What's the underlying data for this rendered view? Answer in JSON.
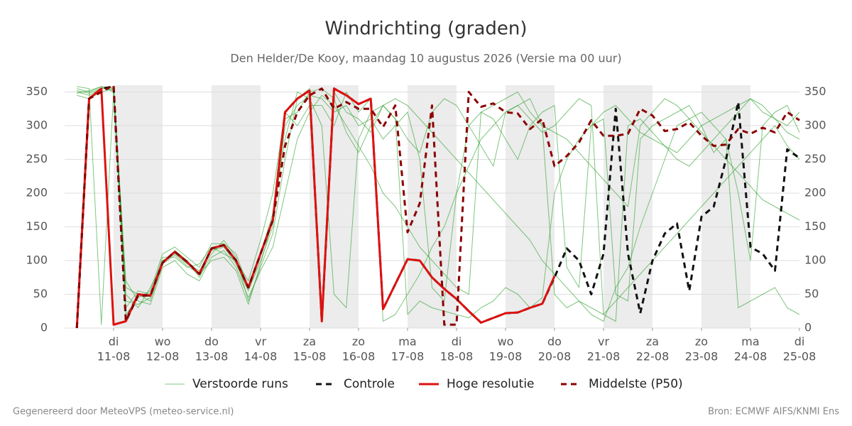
{
  "chart_data": {
    "type": "line",
    "title": "Windrichting (graden)",
    "subtitle": "Den Helder/De Kooy, maandag 10 augustus 2026 (Versie ma 00 uur)",
    "footer_left": "Gegenereerd door MeteoVPS (meteo-service.nl)",
    "footer_right": "Bron: ECMWF AIFS/KNMI Ens",
    "xlim": [
      10,
      25
    ],
    "ylim": [
      0,
      360
    ],
    "yticks": [
      0,
      50,
      100,
      150,
      200,
      250,
      300,
      350
    ],
    "xticks": [
      {
        "value": 11,
        "label": "11-08",
        "weekday": "di"
      },
      {
        "value": 12,
        "label": "12-08",
        "weekday": "wo"
      },
      {
        "value": 13,
        "label": "13-08",
        "weekday": "do"
      },
      {
        "value": 14,
        "label": "14-08",
        "weekday": "vr"
      },
      {
        "value": 15,
        "label": "15-08",
        "weekday": "za"
      },
      {
        "value": 16,
        "label": "16-08",
        "weekday": "zo"
      },
      {
        "value": 17,
        "label": "17-08",
        "weekday": "ma"
      },
      {
        "value": 18,
        "label": "18-08",
        "weekday": "di"
      },
      {
        "value": 19,
        "label": "19-08",
        "weekday": "wo"
      },
      {
        "value": 20,
        "label": "20-08",
        "weekday": "do"
      },
      {
        "value": 21,
        "label": "21-08",
        "weekday": "vr"
      },
      {
        "value": 22,
        "label": "22-08",
        "weekday": "za"
      },
      {
        "value": 23,
        "label": "23-08",
        "weekday": "zo"
      },
      {
        "value": 24,
        "label": "24-08",
        "weekday": "ma"
      },
      {
        "value": 25,
        "label": "25-08",
        "weekday": "di"
      }
    ],
    "shaded_days": [
      11,
      13,
      15,
      17,
      19,
      21,
      23
    ],
    "grid": true,
    "x": [
      10.25,
      10.5,
      10.75,
      11,
      11.25,
      11.5,
      11.75,
      12,
      12.25,
      12.5,
      12.75,
      13,
      13.25,
      13.5,
      13.75,
      14,
      14.25,
      14.5,
      14.75,
      15,
      15.25,
      15.5,
      15.75,
      16,
      16.25,
      16.5,
      16.75,
      17,
      17.25,
      17.5,
      17.75,
      18,
      18.25,
      18.5,
      18.75,
      19,
      19.25,
      19.5,
      19.75,
      20,
      20.25,
      20.5,
      20.75,
      21,
      21.25,
      21.5,
      21.75,
      22,
      22.25,
      22.5,
      22.75,
      23,
      23.25,
      23.5,
      23.75,
      24,
      24.25,
      24.5,
      24.75,
      25
    ],
    "series": [
      {
        "name": "Verstoorde runs",
        "color": "#2ca02c",
        "style": "thin",
        "members": [
          [
            355,
            350,
            358,
            355,
            40,
            35,
            45,
            100,
            110,
            95,
            85,
            115,
            120,
            95,
            55,
            100,
            150,
            300,
            330,
            345,
            340,
            320,
            330,
            300,
            310,
            280,
            300,
            320,
            250,
            60,
            40,
            200,
            300,
            320,
            310,
            280,
            250,
            300,
            320,
            330,
            90,
            60,
            300,
            310,
            50,
            40,
            280,
            300,
            310,
            320,
            330,
            300,
            260,
            280,
            200,
            100,
            300,
            320,
            330,
            290
          ],
          [
            350,
            345,
            355,
            358,
            60,
            50,
            40,
            95,
            115,
            100,
            75,
            110,
            130,
            105,
            40,
            90,
            140,
            250,
            340,
            355,
            10,
            350,
            320,
            310,
            290,
            330,
            310,
            20,
            40,
            30,
            25,
            20,
            15,
            30,
            40,
            60,
            50,
            30,
            45,
            200,
            250,
            280,
            300,
            320,
            330,
            310,
            290,
            280,
            270,
            260,
            280,
            300,
            310,
            320,
            330,
            340,
            320,
            310,
            300,
            320
          ],
          [
            358,
            355,
            5,
            350,
            30,
            55,
            50,
            105,
            105,
            90,
            95,
            120,
            110,
            100,
            70,
            130,
            200,
            320,
            300,
            330,
            330,
            300,
            350,
            320,
            340,
            10,
            20,
            50,
            80,
            120,
            150,
            200,
            240,
            280,
            300,
            320,
            330,
            340,
            300,
            50,
            30,
            40,
            20,
            10,
            60,
            90,
            150,
            200,
            250,
            300,
            310,
            320,
            300,
            280,
            30,
            40,
            50,
            60,
            30,
            20
          ],
          [
            345,
            340,
            350,
            355,
            70,
            40,
            35,
            90,
            100,
            80,
            70,
            105,
            115,
            90,
            45,
            85,
            120,
            200,
            280,
            320,
            345,
            330,
            300,
            270,
            240,
            200,
            180,
            150,
            120,
            100,
            80,
            60,
            50,
            320,
            330,
            340,
            350,
            320,
            300,
            290,
            280,
            260,
            240,
            220,
            200,
            180,
            300,
            320,
            340,
            330,
            310,
            290,
            270,
            250,
            230,
            210,
            190,
            180,
            170,
            160
          ],
          [
            352,
            348,
            356,
            352,
            20,
            45,
            55,
            110,
            120,
            105,
            90,
            125,
            125,
            110,
            60,
            110,
            170,
            280,
            350,
            340,
            300,
            50,
            30,
            280,
            320,
            330,
            340,
            330,
            310,
            290,
            270,
            250,
            230,
            210,
            190,
            170,
            150,
            130,
            100,
            80,
            60,
            40,
            30,
            20,
            40,
            60,
            80,
            100,
            120,
            140,
            160,
            180,
            200,
            220,
            240,
            260,
            280,
            300,
            270,
            250
          ],
          [
            348,
            352,
            358,
            350,
            50,
            30,
            60,
            95,
            108,
            92,
            80,
            100,
            105,
            85,
            35,
            95,
            160,
            310,
            320,
            350,
            355,
            340,
            290,
            260,
            300,
            330,
            310,
            280,
            260,
            320,
            340,
            330,
            300,
            270,
            240,
            320,
            330,
            310,
            290,
            300,
            320,
            340,
            330,
            20,
            10,
            300,
            310,
            290,
            270,
            250,
            240,
            260,
            280,
            300,
            320,
            340,
            330,
            310,
            290,
            280
          ]
        ]
      },
      {
        "name": "Controle",
        "color": "#111111",
        "style": "dashed",
        "values": [
          0,
          340,
          355,
          358,
          12,
          50,
          48,
          97,
          113,
          98,
          80,
          118,
          123,
          100,
          60,
          110,
          160,
          320,
          340,
          352,
          10,
          355,
          345,
          332,
          340,
          28,
          65,
          102,
          100,
          75,
          58,
          43,
          25,
          8,
          15,
          22,
          23,
          30,
          36,
          75,
          118,
          100,
          50,
          110,
          325,
          110,
          22,
          100,
          140,
          155,
          55,
          165,
          180,
          250,
          335,
          120,
          110,
          85,
          265,
          252
        ]
      },
      {
        "name": "Hoge resolutie",
        "color": "#dd1111",
        "style": "solid",
        "values": [
          0,
          340,
          355,
          5,
          10,
          50,
          48,
          97,
          113,
          98,
          80,
          118,
          123,
          100,
          60,
          110,
          160,
          320,
          340,
          352,
          10,
          355,
          345,
          332,
          340,
          28,
          65,
          102,
          100,
          75,
          58,
          43,
          25,
          8,
          15,
          22,
          23,
          30,
          36,
          77,
          null,
          null,
          null,
          null,
          null,
          null,
          null,
          null,
          null,
          null,
          null,
          null,
          null,
          null,
          null,
          null,
          null,
          null,
          null,
          null
        ]
      },
      {
        "name": "Middelste (P50)",
        "color": "#8b0000",
        "style": "dashed",
        "values": [
          0,
          340,
          350,
          360,
          10,
          48,
          48,
          97,
          113,
          98,
          80,
          118,
          123,
          100,
          60,
          110,
          160,
          270,
          320,
          345,
          355,
          325,
          335,
          325,
          325,
          298,
          330,
          142,
          185,
          330,
          5,
          5,
          350,
          328,
          333,
          320,
          318,
          295,
          310,
          240,
          255,
          275,
          308,
          285,
          285,
          288,
          325,
          315,
          292,
          295,
          305,
          285,
          270,
          272,
          295,
          288,
          297,
          290,
          320,
          308
        ]
      }
    ]
  }
}
